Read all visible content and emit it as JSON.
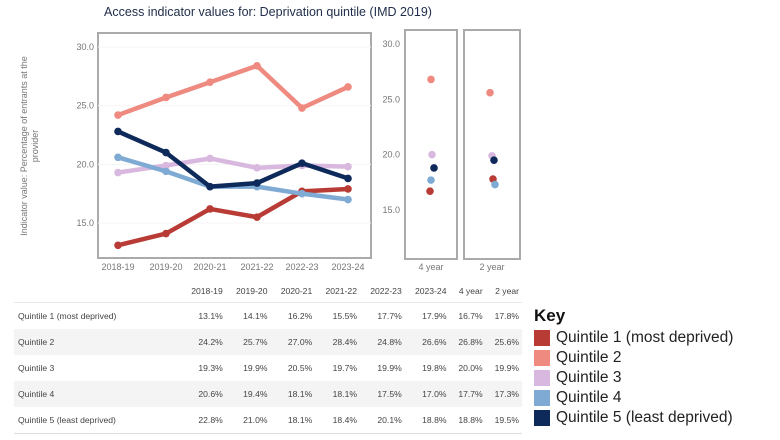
{
  "chart_data": {
    "type": "line",
    "title": "Access indicator values for: Deprivation quintile (IMD 2019)",
    "ylabel": "Indicator value: Percentage of  entrants at the provider",
    "ylabel_lines": [
      "Indicator value: Percentage of  entrants at the",
      "provider"
    ],
    "categories": [
      "2018-19",
      "2019-20",
      "2020-21",
      "2021-22",
      "2022-23",
      "2023-24"
    ],
    "aggregate_categories": [
      "4 year",
      "2 year"
    ],
    "ylim": [
      11,
      31
    ],
    "yticks": [
      15,
      20,
      25,
      30
    ],
    "ytick_labels": [
      "15.0",
      "20.0",
      "25.0",
      "30.0"
    ],
    "grid": false,
    "legend_title": "Key",
    "legend_placement": "bottom-right",
    "series": [
      {
        "name": "Quintile 1 (most deprived)",
        "color": "#b83c35",
        "values": [
          13.1,
          14.1,
          16.2,
          15.5,
          17.7,
          17.9
        ],
        "aggregates": [
          16.7,
          17.8
        ]
      },
      {
        "name": "Quintile 2",
        "color": "#ee8a80",
        "values": [
          24.2,
          25.7,
          27.0,
          28.4,
          24.8,
          26.6
        ],
        "aggregates": [
          26.8,
          25.6
        ]
      },
      {
        "name": "Quintile 3",
        "color": "#d9b8df",
        "values": [
          19.3,
          19.9,
          20.5,
          19.7,
          19.9,
          19.8
        ],
        "aggregates": [
          20.0,
          19.9
        ]
      },
      {
        "name": "Quintile 4",
        "color": "#7eaad4",
        "values": [
          20.6,
          19.4,
          18.1,
          18.1,
          17.5,
          17.0
        ],
        "aggregates": [
          17.7,
          17.3
        ]
      },
      {
        "name": "Quintile 5 (least deprived)",
        "color": "#0e2a5a",
        "values": [
          22.8,
          21.0,
          18.1,
          18.4,
          20.1,
          18.8
        ],
        "aggregates": [
          18.8,
          19.5
        ]
      }
    ]
  },
  "table": {
    "headers": [
      "",
      "2018-19",
      "2019-20",
      "2020-21",
      "2021-22",
      "2022-23",
      "2023-24",
      "4 year",
      "2 year"
    ],
    "rows": [
      [
        "Quintile 1 (most deprived)",
        "13.1%",
        "14.1%",
        "16.2%",
        "15.5%",
        "17.7%",
        "17.9%",
        "16.7%",
        "17.8%"
      ],
      [
        "Quintile 2",
        "24.2%",
        "25.7%",
        "27.0%",
        "28.4%",
        "24.8%",
        "26.6%",
        "26.8%",
        "25.6%"
      ],
      [
        "Quintile 3",
        "19.3%",
        "19.9%",
        "20.5%",
        "19.7%",
        "19.9%",
        "19.8%",
        "20.0%",
        "19.9%"
      ],
      [
        "Quintile 4",
        "20.6%",
        "19.4%",
        "18.1%",
        "18.1%",
        "17.5%",
        "17.0%",
        "17.7%",
        "17.3%"
      ],
      [
        "Quintile 5 (least deprived)",
        "22.8%",
        "21.0%",
        "18.1%",
        "18.4%",
        "20.1%",
        "18.8%",
        "18.8%",
        "19.5%"
      ]
    ]
  }
}
